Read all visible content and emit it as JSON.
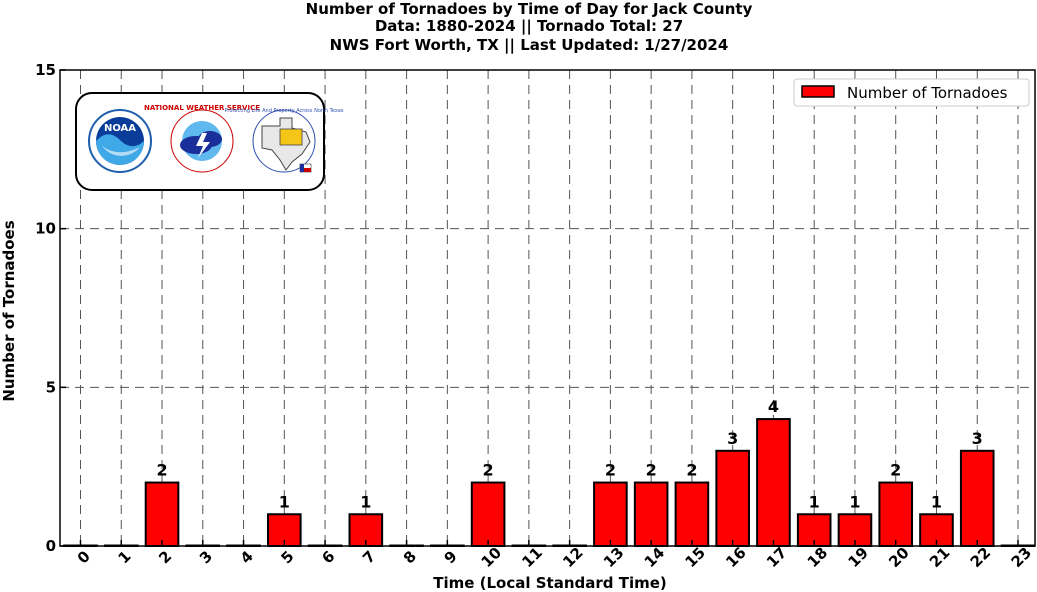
{
  "chart_data": {
    "type": "bar",
    "title_lines": [
      "Number of Tornadoes by Time of Day for Jack County",
      "Data: 1880-2024 || Tornado Total: 27",
      "NWS Fort Worth, TX || Last Updated: 1/27/2024"
    ],
    "xlabel": "Time (Local Standard Time)",
    "ylabel": "Number of Tornadoes",
    "categories": [
      "0",
      "1",
      "2",
      "3",
      "4",
      "5",
      "6",
      "7",
      "8",
      "9",
      "10",
      "11",
      "12",
      "13",
      "14",
      "15",
      "16",
      "17",
      "18",
      "19",
      "20",
      "21",
      "22",
      "23"
    ],
    "series": [
      {
        "name": "Number of Tornadoes",
        "values": [
          0,
          0,
          2,
          0,
          0,
          1,
          0,
          1,
          0,
          0,
          2,
          0,
          0,
          2,
          2,
          2,
          3,
          4,
          1,
          1,
          2,
          1,
          3,
          0
        ]
      }
    ],
    "ylim": [
      0,
      15
    ],
    "yticks": [
      0,
      5,
      10,
      15
    ],
    "grid": true,
    "legend_position": "top-right",
    "bar_color": "#ff0000",
    "data_labels": "shown for nonzero bars"
  },
  "logos": [
    {
      "icon": "noaa-logo-icon",
      "text": "NOAA"
    },
    {
      "icon": "nws-logo-icon",
      "text": "NATIONAL WEATHER SERVICE"
    },
    {
      "icon": "nws-fort-worth-logo-icon",
      "text": "Protecting Life And Property Across North Texas"
    }
  ]
}
